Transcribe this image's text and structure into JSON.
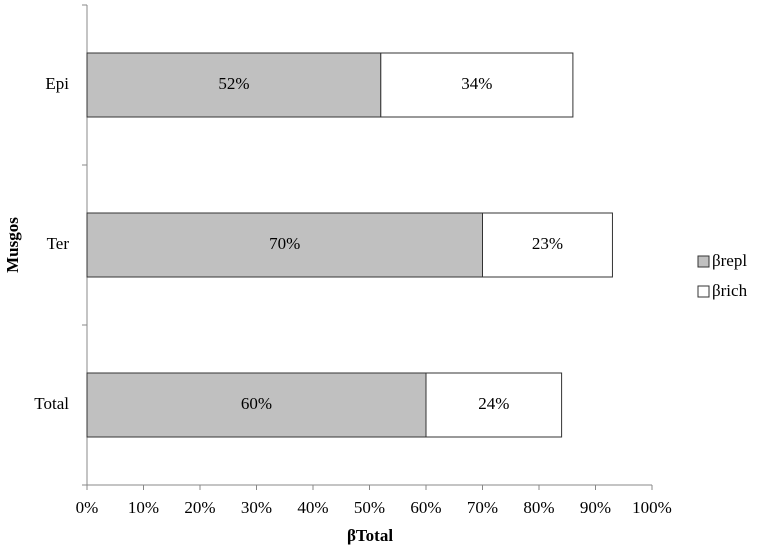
{
  "chart_data": {
    "type": "stacked-bar-horizontal",
    "x_label": "βTotal",
    "y_label": "Musgos",
    "categories": [
      "Epi",
      "Ter",
      "Total"
    ],
    "series": [
      {
        "name": "βrepl",
        "color": "#c0c0c0",
        "values": [
          52,
          70,
          60
        ],
        "value_labels": [
          "52%",
          "70%",
          "60%"
        ]
      },
      {
        "name": "βrich",
        "color": "#ffffff",
        "values": [
          34,
          23,
          24
        ],
        "value_labels": [
          "34%",
          "23%",
          "24%"
        ]
      }
    ],
    "xlim": [
      0,
      100
    ],
    "xticks": [
      {
        "value": 0,
        "label": "0%"
      },
      {
        "value": 10,
        "label": "10%"
      },
      {
        "value": 20,
        "label": "20%"
      },
      {
        "value": 30,
        "label": "30%"
      },
      {
        "value": 40,
        "label": "40%"
      },
      {
        "value": 50,
        "label": "50%"
      },
      {
        "value": 60,
        "label": "60%"
      },
      {
        "value": 70,
        "label": "70%"
      },
      {
        "value": 80,
        "label": "80%"
      },
      {
        "value": 90,
        "label": "90%"
      },
      {
        "value": 100,
        "label": "100%"
      }
    ],
    "legend": "right"
  }
}
